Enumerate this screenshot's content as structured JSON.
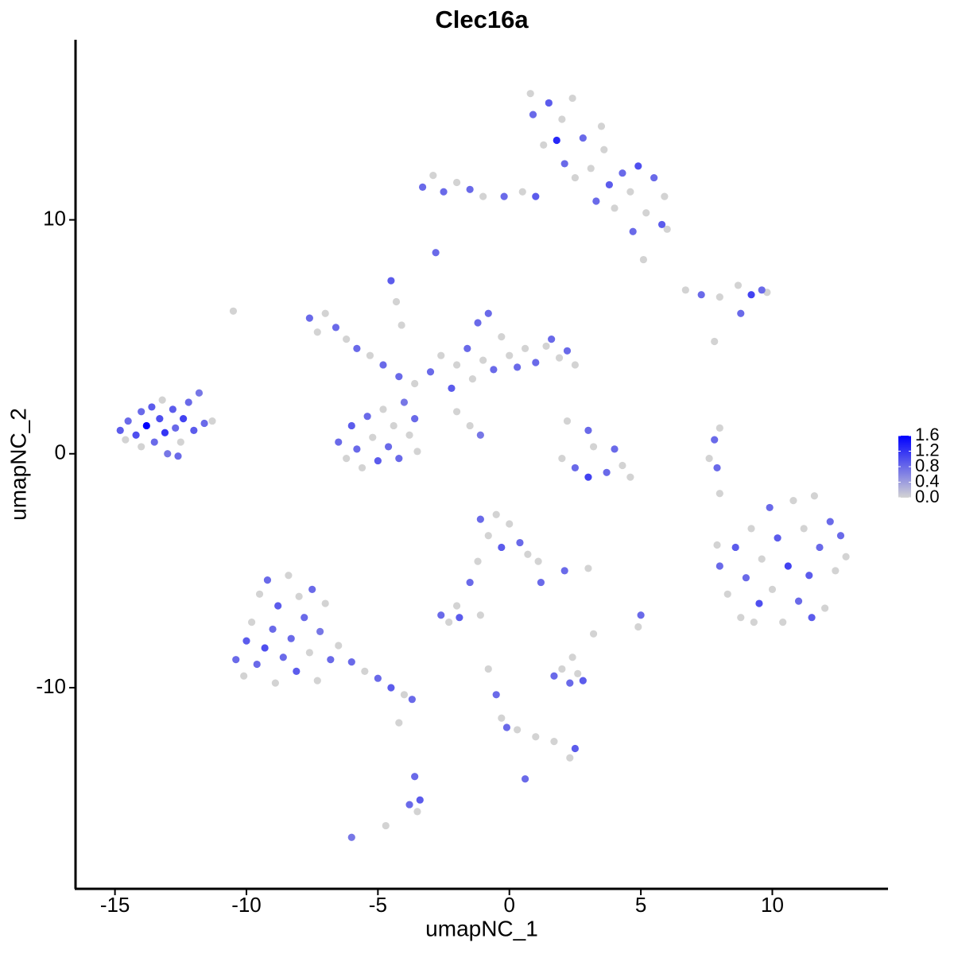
{
  "chart_data": {
    "type": "scatter",
    "title": "Clec16a",
    "x_label": "umapNC_1",
    "y_label": "umapNC_2",
    "xlim": [
      -16.5,
      14.4
    ],
    "ylim": [
      -18.6,
      17.7
    ],
    "xticks": [
      -15,
      -10,
      -5,
      0,
      5,
      10
    ],
    "yticks": [
      -10,
      0,
      10
    ],
    "low_color": "#d3d3d3",
    "high_color": "#0000ff",
    "colorlim": [
      0,
      1.6
    ],
    "colorbar_ticks": [
      {
        "value": 0,
        "label": "0.0"
      },
      {
        "value": 0.4,
        "label": "0.4"
      },
      {
        "value": 0.8,
        "label": "0.8"
      },
      {
        "value": 1.2,
        "label": "1.2"
      },
      {
        "value": 1.6,
        "label": "1.6"
      }
    ],
    "x": [
      -14.8,
      -14.6,
      -14.5,
      -14.2,
      -14.0,
      -14.0,
      -13.8,
      -13.6,
      -13.5,
      -13.3,
      -13.2,
      -13.1,
      -13.0,
      -12.8,
      -12.7,
      -12.5,
      -12.4,
      -12.2,
      -12.0,
      -11.8,
      -11.6,
      -11.3,
      -12.6,
      -10.4,
      -10.1,
      -10.0,
      -9.8,
      -9.6,
      -9.5,
      -9.3,
      -9.2,
      -9.0,
      -8.9,
      -8.8,
      -8.6,
      -8.4,
      -8.3,
      -8.1,
      -8.0,
      -7.8,
      -7.6,
      -7.5,
      -7.3,
      -7.2,
      -7.0,
      -6.8,
      -6.5,
      -6.0,
      -5.5,
      -5.0,
      -4.5,
      -4.0,
      -3.7,
      -4.2,
      -3.6,
      -3.4,
      -3.5,
      -3.8,
      -6.0,
      -4.7,
      -6.5,
      -6.2,
      -6.0,
      -5.8,
      -5.6,
      -5.4,
      -5.2,
      -5.0,
      -4.8,
      -4.6,
      -4.4,
      -4.2,
      -4.0,
      -3.8,
      -3.6,
      -3.5,
      -7.6,
      -7.3,
      -7.0,
      -6.6,
      -6.2,
      -5.8,
      -5.3,
      -4.8,
      -4.5,
      -4.3,
      -4.1,
      -4.2,
      -3.6,
      -3.0,
      -2.6,
      -2.2,
      -2.0,
      -1.6,
      -1.4,
      -1.2,
      -1.0,
      -0.8,
      -0.6,
      -0.3,
      0,
      0.3,
      0.6,
      1.0,
      1.4,
      1.6,
      1.9,
      2.2,
      2.5,
      -1.5,
      -1.1,
      -2.0,
      -3.3,
      -2.9,
      -2.5,
      -2.0,
      -1.5,
      -1.0,
      -0.2,
      0.5,
      1.0,
      0.8,
      0.9,
      1.3,
      1.5,
      1.8,
      2.0,
      2.1,
      2.4,
      2.5,
      2.8,
      3.1,
      3.3,
      3.5,
      3.8,
      3.6,
      4.0,
      4.3,
      4.6,
      4.7,
      4.9,
      5.2,
      5.5,
      5.8,
      5.9,
      6.0,
      5.1,
      -2.8,
      6.7,
      7.3,
      8.0,
      8.7,
      9.2,
      9.6,
      9.8,
      8.8,
      7.8,
      -10.5,
      2.2,
      3.0,
      3.2,
      2.0,
      2.5,
      3.0,
      3.7,
      4.3,
      4.0,
      4.6,
      8.0,
      7.8,
      7.6,
      7.9,
      8.0,
      8.0,
      8.3,
      8.6,
      8.8,
      9.0,
      9.2,
      9.5,
      9.6,
      9.9,
      10.0,
      10.2,
      10.4,
      10.6,
      10.8,
      11.0,
      11.2,
      11.4,
      11.6,
      11.8,
      12.0,
      12.2,
      12.4,
      12.6,
      12.8,
      11.5,
      9.3,
      7.9,
      -1.1,
      -0.8,
      -0.5,
      -0.3,
      0.0,
      0.4,
      0.7,
      1.1,
      1.2,
      -1.2,
      -1.5,
      -2.0,
      -2.6,
      -2.3,
      -1.9,
      -1.1,
      2.1,
      3.0,
      1.7,
      2.0,
      2.3,
      2.6,
      2.8,
      2.4,
      3.2,
      5.0,
      4.9,
      -0.8,
      -0.5,
      -0.3,
      -0.1,
      0.3,
      1.0,
      1.7,
      2.5,
      2.3,
      0.6
    ],
    "y": [
      1.0,
      0.6,
      1.4,
      0.8,
      1.8,
      0.3,
      1.2,
      2.0,
      0.5,
      1.5,
      2.3,
      0.9,
      0.0,
      1.9,
      1.1,
      0.5,
      1.5,
      2.2,
      1.0,
      2.6,
      1.3,
      1.4,
      -0.1,
      -8.8,
      -9.5,
      -8.0,
      -7.2,
      -9.0,
      -6.0,
      -8.3,
      -5.4,
      -7.5,
      -9.8,
      -6.5,
      -8.7,
      -5.2,
      -7.9,
      -9.3,
      -6.1,
      -7.0,
      -8.5,
      -5.8,
      -9.7,
      -7.6,
      -6.4,
      -8.8,
      -8.2,
      -8.9,
      -9.3,
      -9.6,
      -10.0,
      -10.3,
      -10.5,
      -11.5,
      -13.8,
      -14.8,
      -15.3,
      -15.0,
      -16.4,
      -15.9,
      0.5,
      -0.2,
      1.2,
      0.2,
      -0.6,
      1.6,
      0.7,
      -0.3,
      1.9,
      0.3,
      1.2,
      -0.2,
      2.2,
      0.8,
      1.5,
      0.1,
      5.8,
      5.2,
      6.0,
      5.4,
      4.9,
      4.5,
      4.2,
      3.8,
      7.4,
      6.5,
      5.5,
      3.3,
      3.0,
      3.5,
      4.2,
      2.8,
      3.8,
      4.5,
      3.2,
      5.6,
      4.0,
      6.0,
      3.6,
      5.0,
      4.2,
      3.7,
      4.5,
      3.9,
      4.6,
      4.9,
      4.1,
      4.4,
      3.8,
      1.2,
      0.8,
      1.8,
      11.4,
      11.9,
      11.2,
      11.6,
      11.3,
      11.0,
      11.0,
      11.2,
      11.0,
      15.4,
      14.5,
      13.2,
      15.0,
      13.4,
      14.3,
      12.4,
      15.2,
      11.8,
      13.5,
      12.2,
      10.8,
      14.0,
      11.5,
      13.0,
      10.5,
      12.0,
      11.2,
      9.5,
      12.3,
      10.3,
      11.8,
      9.8,
      11.0,
      9.6,
      8.3,
      8.6,
      7.0,
      6.8,
      6.7,
      7.2,
      6.8,
      7.0,
      6.9,
      6.0,
      4.8,
      6.1,
      1.4,
      1.0,
      0.3,
      -0.2,
      -0.6,
      -1.0,
      -0.8,
      -0.5,
      0.2,
      -1.0,
      1.1,
      0.6,
      -0.2,
      -0.6,
      -1.7,
      -4.8,
      -6.0,
      -4.0,
      -7.0,
      -5.3,
      -3.2,
      -6.4,
      -4.5,
      -2.3,
      -5.8,
      -3.6,
      -7.2,
      -4.8,
      -2.0,
      -6.3,
      -3.2,
      -5.2,
      -1.8,
      -4.0,
      -6.6,
      -2.9,
      -5.0,
      -3.5,
      -4.4,
      -7.0,
      -7.2,
      -3.9,
      -2.8,
      -3.5,
      -2.6,
      -4.0,
      -3.0,
      -3.8,
      -4.3,
      -4.6,
      -5.5,
      -4.6,
      -5.5,
      -6.5,
      -6.9,
      -7.2,
      -7.0,
      -6.9,
      -5.0,
      -4.9,
      -9.5,
      -9.2,
      -9.8,
      -9.4,
      -9.7,
      -8.7,
      -7.7,
      -6.9,
      -7.4,
      -9.2,
      -10.3,
      -11.3,
      -11.7,
      -11.8,
      -12.1,
      -12.3,
      -12.6,
      -13.0,
      -13.9
    ],
    "values": [
      0.9,
      0,
      0.8,
      1.0,
      0.8,
      0,
      1.6,
      0.9,
      0.8,
      1.0,
      0,
      1.2,
      0.7,
      0.9,
      0.8,
      0,
      1.1,
      0.8,
      0.9,
      0.7,
      0.8,
      0,
      0.8,
      0.8,
      0,
      0.9,
      0,
      0.8,
      0,
      1.0,
      0.8,
      0.8,
      0,
      0.9,
      0.8,
      0,
      0.8,
      0.9,
      0,
      0.8,
      0,
      0.8,
      0,
      0.7,
      0,
      0.8,
      0,
      0.8,
      0,
      0.8,
      0.9,
      0,
      0.8,
      0,
      0.8,
      0.9,
      0,
      0.8,
      0.7,
      0,
      0.8,
      0,
      0.9,
      0.8,
      0,
      0.8,
      0,
      0.9,
      0,
      0.8,
      0,
      0.8,
      0.7,
      0,
      0.8,
      0,
      0.8,
      0,
      0,
      0.8,
      0,
      0.8,
      0,
      0.8,
      0.9,
      0,
      0,
      0.8,
      0,
      0.8,
      0,
      0.9,
      0,
      0.8,
      0,
      0.8,
      0,
      0.8,
      0.8,
      0,
      0,
      0.8,
      0,
      0.8,
      0,
      0.8,
      0,
      0.8,
      0,
      0,
      0.7,
      0,
      0.8,
      0,
      0.8,
      0,
      0.8,
      0,
      0.8,
      0,
      0.9,
      0,
      0.8,
      0,
      0.9,
      1.3,
      0,
      0.8,
      0,
      0,
      0.8,
      0,
      0.8,
      0,
      0.9,
      0,
      0,
      0.8,
      0,
      0.8,
      1.0,
      0,
      0.8,
      0.9,
      0,
      0,
      0,
      0.8,
      0,
      0.8,
      0,
      0,
      1.1,
      0.8,
      0,
      0.8,
      0,
      0,
      0,
      0.8,
      0,
      0,
      0.8,
      1.1,
      0.8,
      0,
      0.8,
      0,
      0,
      0.8,
      0,
      0.8,
      0,
      0.8,
      0,
      0.9,
      0,
      0.8,
      0,
      1.0,
      0,
      0.8,
      0,
      0.9,
      0,
      1.1,
      0,
      0.8,
      0,
      0.9,
      0,
      0.8,
      0,
      0.8,
      0,
      0.8,
      0,
      0.9,
      0,
      0,
      0.8,
      0,
      0,
      0.9,
      0,
      0.8,
      0,
      0,
      0.8,
      0,
      0.8,
      0,
      0.8,
      0,
      0.9,
      0,
      0.8,
      0,
      0.8,
      0,
      0.8,
      0,
      0.9,
      0,
      0,
      0.8,
      0,
      0,
      0.8,
      0,
      0.8,
      0,
      0,
      0,
      0.9,
      0,
      0.8
    ]
  }
}
